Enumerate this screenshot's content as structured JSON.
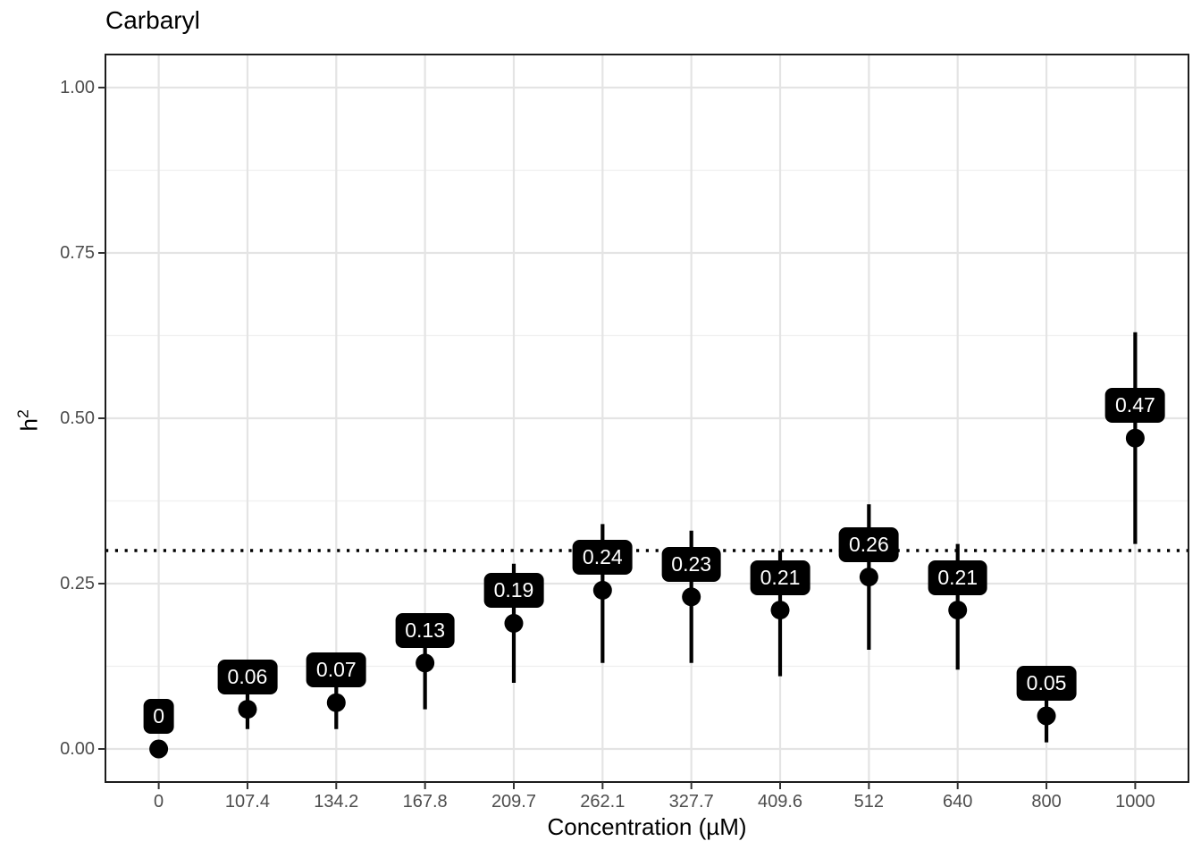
{
  "figure": {
    "title": "Carbaryl"
  },
  "chart_data": {
    "type": "pointrange",
    "title": "Carbaryl",
    "xlabel": "Concentration (µM)",
    "ylabel_base": "h",
    "ylabel_exponent": "2",
    "categories": [
      "0",
      "107.4",
      "134.2",
      "167.8",
      "209.7",
      "262.1",
      "327.7",
      "409.6",
      "512",
      "640",
      "800",
      "1000"
    ],
    "series": [
      {
        "name": "h2_estimate",
        "values": [
          0.0,
          0.06,
          0.07,
          0.13,
          0.19,
          0.24,
          0.23,
          0.21,
          0.26,
          0.21,
          0.05,
          0.47
        ],
        "ci_low": [
          0.0,
          0.03,
          0.03,
          0.06,
          0.1,
          0.13,
          0.13,
          0.11,
          0.15,
          0.12,
          0.01,
          0.31
        ],
        "ci_high": [
          0.0,
          0.1,
          0.12,
          0.2,
          0.28,
          0.34,
          0.33,
          0.3,
          0.37,
          0.31,
          0.1,
          0.63
        ]
      }
    ],
    "point_labels": [
      "0",
      "0.06",
      "0.07",
      "0.13",
      "0.19",
      "0.24",
      "0.23",
      "0.21",
      "0.26",
      "0.21",
      "0.05",
      "0.47"
    ],
    "reference_line": {
      "y": 0.3,
      "style": "dotted",
      "color": "#000000"
    },
    "ylim": [
      -0.05,
      1.05
    ],
    "yticks": [
      0.0,
      0.25,
      0.5,
      0.75,
      1.0
    ],
    "ytick_labels": [
      "0.00",
      "0.25",
      "0.50",
      "0.75",
      "1.00"
    ],
    "yticks_minor": [
      0.125,
      0.375,
      0.625,
      0.875
    ],
    "grid": true,
    "legend": "none",
    "colors": {
      "point": "#000000",
      "errorbar": "#000000",
      "label_bg": "#000000",
      "label_text": "#FFFFFF",
      "grid_major": "#E4E4E4",
      "grid_minor": "#EFEFEF",
      "panel_border": "#1C1C1C",
      "tick": "#333333",
      "tick_label": "#4D4D4D",
      "background": "#FFFFFF"
    }
  }
}
